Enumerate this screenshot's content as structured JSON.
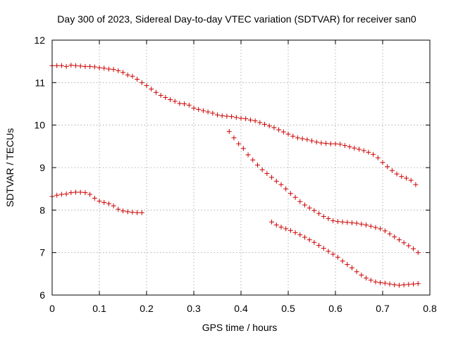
{
  "chart_data": {
    "type": "scatter",
    "title": "Day 300 of 2023, Sidereal Day-to-day VTEC variation (SDTVAR) for receiver san0",
    "xlabel": "GPS time / hours",
    "ylabel": "SDTVAR / TECUs",
    "xlim": [
      0,
      0.8
    ],
    "ylim": [
      6,
      12
    ],
    "xticks": [
      "0",
      "0.1",
      "0.2",
      "0.3",
      "0.4",
      "0.5",
      "0.6",
      "0.7",
      "0.8"
    ],
    "yticks": [
      "6",
      "7",
      "8",
      "9",
      "10",
      "11",
      "12"
    ],
    "grid": true,
    "marker_color": "#cc0000",
    "series": [
      {
        "name": "track-1",
        "x": [
          0.0,
          0.01,
          0.02,
          0.03,
          0.04,
          0.05,
          0.06,
          0.07,
          0.08,
          0.09,
          0.1,
          0.11,
          0.12,
          0.13,
          0.14,
          0.15,
          0.16,
          0.17,
          0.18,
          0.19,
          0.2,
          0.21,
          0.22,
          0.23,
          0.24,
          0.25,
          0.26,
          0.27,
          0.28,
          0.29,
          0.3,
          0.31,
          0.32,
          0.33,
          0.34,
          0.35,
          0.36,
          0.37,
          0.38,
          0.39,
          0.4,
          0.41,
          0.42,
          0.43,
          0.44,
          0.45,
          0.46,
          0.47,
          0.48,
          0.49,
          0.5,
          0.51,
          0.52,
          0.53,
          0.54,
          0.55,
          0.56,
          0.57,
          0.58,
          0.59,
          0.6,
          0.61,
          0.62,
          0.63,
          0.64,
          0.65,
          0.66,
          0.67,
          0.68,
          0.69,
          0.7,
          0.71,
          0.72,
          0.73,
          0.74,
          0.75,
          0.76,
          0.77
        ],
        "y": [
          11.4,
          11.4,
          11.4,
          11.38,
          11.41,
          11.4,
          11.39,
          11.38,
          11.38,
          11.37,
          11.35,
          11.34,
          11.32,
          11.31,
          11.28,
          11.24,
          11.18,
          11.15,
          11.08,
          11.0,
          10.93,
          10.85,
          10.77,
          10.7,
          10.65,
          10.6,
          10.56,
          10.51,
          10.5,
          10.47,
          10.4,
          10.37,
          10.34,
          10.31,
          10.28,
          10.24,
          10.22,
          10.21,
          10.2,
          10.18,
          10.16,
          10.15,
          10.12,
          10.1,
          10.06,
          10.02,
          9.98,
          9.94,
          9.89,
          9.84,
          9.79,
          9.74,
          9.7,
          9.68,
          9.66,
          9.63,
          9.6,
          9.58,
          9.57,
          9.56,
          9.56,
          9.55,
          9.52,
          9.49,
          9.46,
          9.43,
          9.4,
          9.36,
          9.31,
          9.23,
          9.12,
          9.02,
          8.93,
          8.85,
          8.79,
          8.75,
          8.7,
          8.6
        ]
      },
      {
        "name": "track-2",
        "x": [
          0.0,
          0.01,
          0.02,
          0.03,
          0.04,
          0.05,
          0.06,
          0.07,
          0.08,
          0.09,
          0.1,
          0.11,
          0.12,
          0.13,
          0.14,
          0.15,
          0.16,
          0.17,
          0.18,
          0.19
        ],
        "y": [
          8.32,
          8.35,
          8.37,
          8.38,
          8.41,
          8.42,
          8.42,
          8.41,
          8.37,
          8.28,
          8.21,
          8.18,
          8.15,
          8.1,
          8.02,
          7.98,
          7.96,
          7.95,
          7.94,
          7.94
        ]
      },
      {
        "name": "track-3",
        "x": [
          0.375,
          0.385,
          0.395,
          0.405,
          0.415,
          0.425,
          0.435,
          0.445,
          0.455,
          0.465,
          0.475,
          0.485,
          0.495,
          0.505,
          0.515,
          0.525,
          0.535,
          0.545,
          0.555,
          0.565,
          0.575,
          0.585,
          0.595,
          0.605,
          0.615,
          0.625,
          0.635,
          0.645,
          0.655,
          0.665,
          0.675,
          0.685,
          0.695,
          0.705,
          0.715,
          0.725,
          0.735,
          0.745,
          0.755,
          0.765,
          0.775
        ],
        "y": [
          9.85,
          9.7,
          9.56,
          9.45,
          9.3,
          9.18,
          9.06,
          8.95,
          8.86,
          8.77,
          8.68,
          8.6,
          8.5,
          8.39,
          8.3,
          8.2,
          8.12,
          8.05,
          7.99,
          7.92,
          7.85,
          7.8,
          7.75,
          7.73,
          7.72,
          7.71,
          7.7,
          7.69,
          7.67,
          7.65,
          7.62,
          7.59,
          7.56,
          7.51,
          7.44,
          7.37,
          7.3,
          7.23,
          7.16,
          7.09,
          7.0
        ]
      },
      {
        "name": "track-4",
        "x": [
          0.465,
          0.475,
          0.485,
          0.495,
          0.505,
          0.515,
          0.525,
          0.535,
          0.545,
          0.555,
          0.565,
          0.575,
          0.585,
          0.595,
          0.605,
          0.615,
          0.625,
          0.635,
          0.645,
          0.655,
          0.665,
          0.675,
          0.685,
          0.695,
          0.705,
          0.715,
          0.725,
          0.735,
          0.745,
          0.755,
          0.765,
          0.775
        ],
        "y": [
          7.72,
          7.65,
          7.6,
          7.56,
          7.52,
          7.47,
          7.42,
          7.36,
          7.3,
          7.24,
          7.17,
          7.1,
          7.03,
          6.96,
          6.89,
          6.8,
          6.72,
          6.64,
          6.55,
          6.47,
          6.4,
          6.35,
          6.31,
          6.29,
          6.28,
          6.26,
          6.24,
          6.23,
          6.24,
          6.25,
          6.26,
          6.27
        ]
      }
    ]
  }
}
